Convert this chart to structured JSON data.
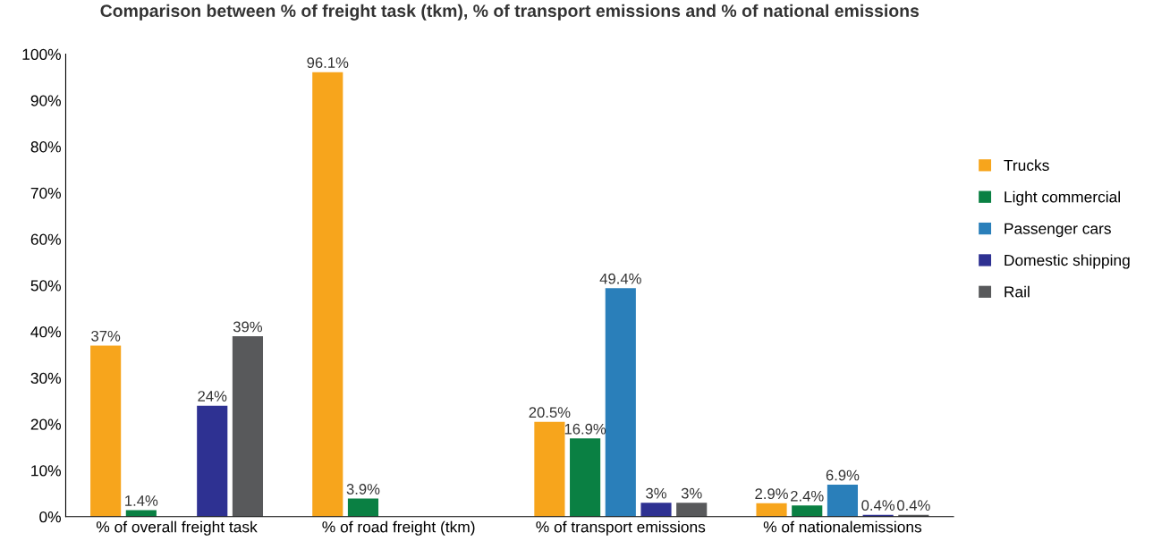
{
  "chart_data": {
    "type": "bar",
    "title": "Comparison between % of freight task (tkm), % of transport emissions and % of national emissions",
    "categories": [
      "% of overall freight task",
      "% of road freight (tkm)",
      "% of transport emissions",
      "% of nationalemissions"
    ],
    "series": [
      {
        "name": "Trucks",
        "color": "#f7a51c",
        "values": [
          37,
          96.1,
          20.5,
          2.9
        ],
        "value_labels": [
          "37%",
          "96.1%",
          "20.5%",
          "2.9%"
        ]
      },
      {
        "name": "Light commercial",
        "color": "#0a8043",
        "values": [
          1.4,
          3.9,
          16.9,
          2.4
        ],
        "value_labels": [
          "1.4%",
          "3.9%",
          "16.9%",
          "2.4%"
        ]
      },
      {
        "name": "Passenger cars",
        "color": "#2a7fba",
        "values": [
          null,
          null,
          49.4,
          6.9
        ],
        "value_labels": [
          null,
          null,
          "49.4%",
          "6.9%"
        ]
      },
      {
        "name": "Domestic shipping",
        "color": "#2e3192",
        "values": [
          24,
          null,
          3,
          0.4
        ],
        "value_labels": [
          "24%",
          null,
          "3%",
          "0.4%"
        ]
      },
      {
        "name": "Rail",
        "color": "#58595b",
        "values": [
          39,
          null,
          3,
          0.4
        ],
        "value_labels": [
          "39%",
          null,
          "3%",
          "0.4%"
        ]
      }
    ],
    "ylim": [
      0,
      100
    ],
    "yticks": [
      {
        "value": 0,
        "label": "0%"
      },
      {
        "value": 10,
        "label": "10%"
      },
      {
        "value": 20,
        "label": "20%"
      },
      {
        "value": 30,
        "label": "30%"
      },
      {
        "value": 40,
        "label": "40%"
      },
      {
        "value": 50,
        "label": "50%"
      },
      {
        "value": 60,
        "label": "60%"
      },
      {
        "value": 70,
        "label": "70%"
      },
      {
        "value": 80,
        "label": "80%"
      },
      {
        "value": 90,
        "label": "90%"
      },
      {
        "value": 100,
        "label": "100%"
      }
    ],
    "grid": false,
    "legend": "right"
  }
}
